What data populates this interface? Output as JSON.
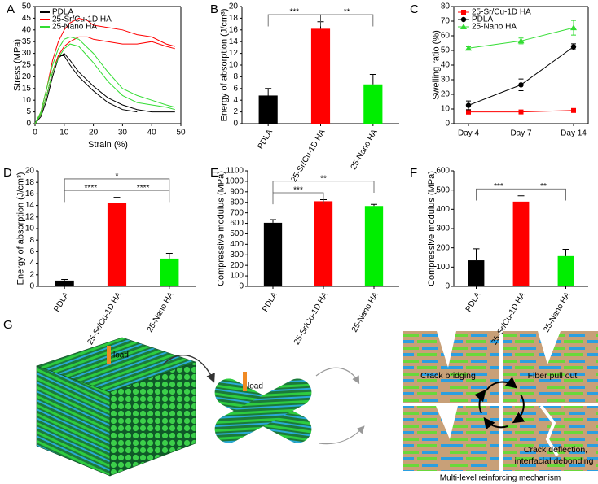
{
  "chart_data": [
    {
      "type": "line",
      "panel": "A",
      "x_label": "Strain (%)",
      "y_label": "Stress (MPa)",
      "xlim": [
        0,
        50
      ],
      "xticks": [
        0,
        10,
        20,
        30,
        40,
        50
      ],
      "ylim": [
        0,
        50
      ],
      "yticks": [
        0,
        5,
        10,
        15,
        20,
        25,
        30,
        35,
        40,
        45,
        50
      ],
      "legend": "upper left",
      "series": [
        {
          "name": "PDLA",
          "color": "#000000",
          "curves": [
            {
              "x": [
                0,
                2,
                4,
                6,
                8,
                10,
                12,
                15,
                20,
                25,
                30,
                35,
                40,
                45,
                48
              ],
              "values": [
                0,
                3,
                10,
                20,
                28,
                30,
                27,
                22,
                16,
                11,
                8,
                6,
                5,
                5,
                5
              ]
            },
            {
              "x": [
                0,
                2,
                4,
                6,
                8,
                10,
                12,
                15,
                20,
                25,
                30,
                35
              ],
              "values": [
                0,
                4,
                12,
                22,
                29,
                29,
                25,
                20,
                14,
                9,
                6,
                5
              ]
            }
          ]
        },
        {
          "name": "25-Sr/Cu-1D HA",
          "color": "#ff0000",
          "curves": [
            {
              "x": [
                0,
                2,
                4,
                6,
                8,
                10,
                12,
                15,
                18,
                20,
                25,
                30,
                35,
                40,
                45,
                48
              ],
              "values": [
                0,
                5,
                15,
                27,
                35,
                40,
                43,
                45,
                44,
                42,
                41,
                40,
                38,
                37,
                34,
                33
              ]
            },
            {
              "x": [
                0,
                2,
                4,
                6,
                8,
                10,
                12,
                15,
                18,
                20,
                25,
                30,
                35,
                40,
                45,
                48
              ],
              "values": [
                0,
                4,
                12,
                22,
                29,
                33,
                35,
                37,
                37,
                36,
                35,
                34,
                34,
                35,
                33,
                32
              ]
            }
          ]
        },
        {
          "name": "25-Nano HA",
          "color": "#33dd33",
          "curves": [
            {
              "x": [
                0,
                2,
                4,
                6,
                8,
                10,
                12,
                15,
                20,
                25,
                30,
                35,
                40,
                45,
                48
              ],
              "values": [
                0,
                5,
                15,
                25,
                32,
                36,
                37,
                36,
                30,
                22,
                15,
                12,
                10,
                8,
                7
              ]
            },
            {
              "x": [
                0,
                2,
                4,
                6,
                8,
                10,
                12,
                15,
                20,
                25,
                30,
                35,
                40,
                45,
                48
              ],
              "values": [
                0,
                4,
                12,
                22,
                28,
                32,
                34,
                33,
                26,
                18,
                12,
                9,
                8,
                7,
                6
              ]
            }
          ]
        }
      ]
    },
    {
      "type": "bar",
      "panel": "B",
      "y_label": "Energy of absorption (J/cm³)",
      "categories": [
        "PDLA",
        "25-Sr/Cu-1D HA",
        "25-Nano HA"
      ],
      "values": [
        4.8,
        16.2,
        6.7
      ],
      "errors": [
        1.2,
        1.2,
        1.7
      ],
      "colors": [
        "#000000",
        "#ff0000",
        "#00ee00"
      ],
      "ylim": [
        0,
        20
      ],
      "yticks": [
        0,
        2,
        4,
        6,
        8,
        10,
        12,
        14,
        16,
        18,
        20
      ],
      "brackets": [
        {
          "from": 0,
          "to": 1,
          "label": "***"
        },
        {
          "from": 1,
          "to": 2,
          "label": "**"
        }
      ]
    },
    {
      "type": "line",
      "panel": "C",
      "y_label": "Swelling ratio (%)",
      "categories": [
        "Day 4",
        "Day 7",
        "Day 14"
      ],
      "ylim": [
        0,
        80
      ],
      "yticks": [
        0,
        10,
        20,
        30,
        40,
        50,
        60,
        70,
        80
      ],
      "legend": "upper left",
      "series": [
        {
          "name": "25-Sr/Cu-1D HA",
          "color": "#ff0000",
          "marker": "square",
          "values": [
            8,
            8,
            9
          ],
          "errors": [
            1.5,
            1,
            1
          ]
        },
        {
          "name": "PDLA",
          "color": "#000000",
          "marker": "circle",
          "values": [
            12.5,
            26.5,
            52.5
          ],
          "errors": [
            3,
            4,
            2
          ]
        },
        {
          "name": "25-Nano HA",
          "color": "#33dd33",
          "marker": "triangle",
          "values": [
            51.5,
            56.5,
            65.5
          ],
          "errors": [
            1,
            2,
            5
          ]
        }
      ]
    },
    {
      "type": "bar",
      "panel": "D",
      "y_label": "Energy of absorption (J/cm³)",
      "categories": [
        "PDLA",
        "25-Sr/Cu-1D HA",
        "25-Nano HA"
      ],
      "values": [
        1.0,
        14.4,
        4.8
      ],
      "errors": [
        0.2,
        1.0,
        0.9
      ],
      "colors": [
        "#000000",
        "#ff0000",
        "#00ee00"
      ],
      "ylim": [
        0,
        20
      ],
      "yticks": [
        0,
        2,
        4,
        6,
        8,
        10,
        12,
        14,
        16,
        18,
        20
      ],
      "brackets": [
        {
          "from": 0,
          "to": 1,
          "label": "****"
        },
        {
          "from": 1,
          "to": 2,
          "label": "****"
        },
        {
          "from": 0,
          "to": 2,
          "label": "*"
        }
      ]
    },
    {
      "type": "bar",
      "panel": "E",
      "y_label": "Compressive modulus (MPa)",
      "categories": [
        "PDLA",
        "25-Sr/Cu-1D HA",
        "25-Nano HA"
      ],
      "values": [
        605,
        810,
        765
      ],
      "errors": [
        30,
        15,
        15
      ],
      "colors": [
        "#000000",
        "#ff0000",
        "#00ee00"
      ],
      "ylim": [
        0,
        1100
      ],
      "yticks": [
        0,
        100,
        200,
        300,
        400,
        500,
        600,
        700,
        800,
        900,
        1000,
        1100
      ],
      "brackets": [
        {
          "from": 0,
          "to": 1,
          "label": "***"
        },
        {
          "from": 0,
          "to": 2,
          "label": "**"
        }
      ]
    },
    {
      "type": "bar",
      "panel": "F",
      "y_label": "Compressive modulus (MPa)",
      "categories": [
        "PDLA",
        "25-Sr/Cu-1D HA",
        "25-Nano HA"
      ],
      "values": [
        135,
        440,
        157
      ],
      "errors": [
        60,
        30,
        35
      ],
      "colors": [
        "#000000",
        "#ff0000",
        "#00ee00"
      ],
      "ylim": [
        0,
        600
      ],
      "yticks": [
        0,
        100,
        200,
        300,
        400,
        500,
        600
      ],
      "brackets": [
        {
          "from": 0,
          "to": 1,
          "label": "***"
        },
        {
          "from": 1,
          "to": 2,
          "label": "**"
        }
      ]
    }
  ],
  "diagram": {
    "panel": "G",
    "load_labels": [
      "load",
      "load"
    ],
    "mechanisms": [
      "Crack bridging",
      "Fiber pull out"
    ],
    "deflection_lines": [
      "Crack deflection,",
      "interfacial debonding"
    ],
    "caption": "Multi-level reinforcing mechanism"
  }
}
